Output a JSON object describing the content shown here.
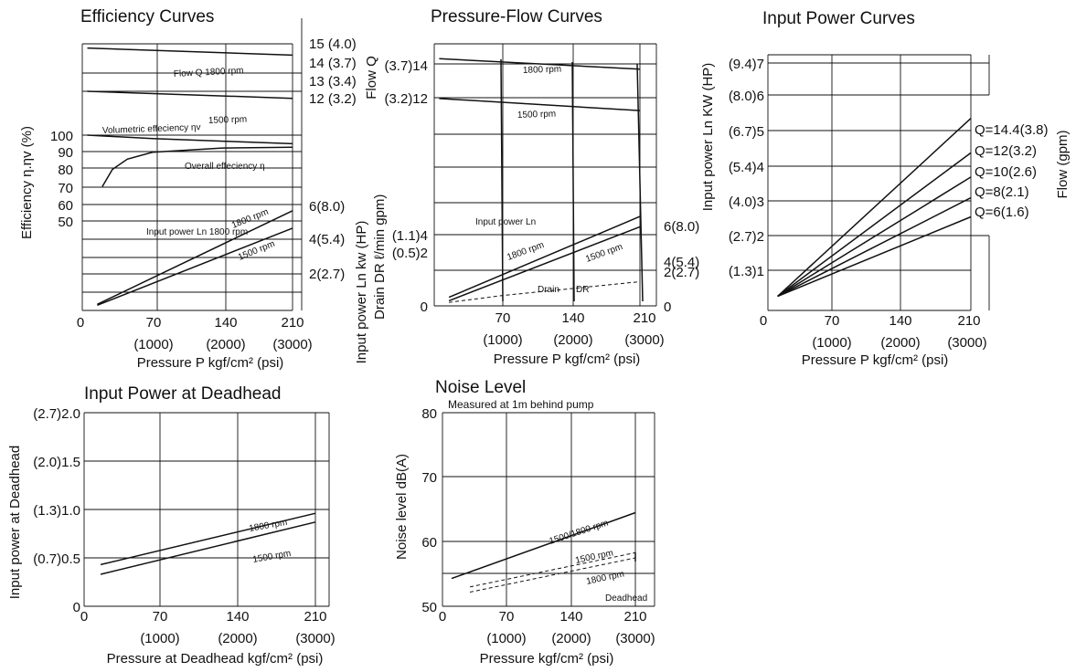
{
  "chart_data": [
    {
      "id": "eff",
      "type": "line",
      "title": "Efficiency Curves",
      "xlabel": "Pressure P kgf/cm² (psi)",
      "x_ticks": [
        {
          "value": 0,
          "label": "0",
          "sub": ""
        },
        {
          "value": 70,
          "label": "70",
          "sub": "(1000)"
        },
        {
          "value": 140,
          "label": "140",
          "sub": "(2000)"
        },
        {
          "value": 210,
          "label": "210",
          "sub": "(3000)"
        }
      ],
      "xlim": [
        0,
        220
      ],
      "ylabel_left": "Efficiency η.ηv (%)",
      "left_ticks": [
        "100",
        "90",
        "80",
        "70",
        "60",
        "50"
      ],
      "ylim_eff": [
        50,
        100
      ],
      "ylabel_right_flow": "Flow Q",
      "right_flow_ticks": [
        "15 (4.0)",
        "14 (3.7)",
        "13 (3.4)",
        "12 (3.2)"
      ],
      "ylim_flow": [
        12,
        15
      ],
      "ylabel_right_power": "Input power Ln kw (HP)",
      "right_power_ticks": [
        "6(8.0)",
        "4(5.4)",
        "2(2.7)"
      ],
      "ylim_power": [
        0,
        6
      ],
      "series": [
        {
          "name": "Flow Q 1800 rpm",
          "axis": "flow",
          "x": [
            5,
            210
          ],
          "y": [
            14.45,
            14.05
          ]
        },
        {
          "name": "1500 rpm",
          "axis": "flow",
          "x": [
            5,
            210
          ],
          "y": [
            12.0,
            11.6
          ]
        },
        {
          "name": "Volumetric effeciency ηv",
          "axis": "eff",
          "x": [
            5,
            70,
            140,
            210
          ],
          "y": [
            100,
            98,
            96.5,
            95
          ]
        },
        {
          "name": "Overall effeciency η",
          "axis": "eff",
          "x": [
            20,
            30,
            45,
            70,
            140,
            210
          ],
          "y": [
            70,
            80,
            86,
            90,
            92.5,
            93
          ]
        },
        {
          "name": "Input power Ln 1800 rpm",
          "axis": "power",
          "x": [
            15,
            210
          ],
          "y": [
            0.35,
            5.7
          ]
        },
        {
          "name": "1500 rpm",
          "axis": "power",
          "x": [
            15,
            210
          ],
          "y": [
            0.3,
            4.7
          ]
        }
      ]
    },
    {
      "id": "pf",
      "type": "line",
      "title": "Pressure-Flow Curves",
      "xlabel": "Pressure P kgf/cm² (psi)",
      "x_ticks": [
        {
          "value": 0,
          "label": "0",
          "sub": ""
        },
        {
          "value": 70,
          "label": "70",
          "sub": "(1000)"
        },
        {
          "value": 140,
          "label": "140",
          "sub": "(2000)"
        },
        {
          "value": 210,
          "label": "210",
          "sub": "(3000)"
        }
      ],
      "xlim": [
        0,
        220
      ],
      "ylabel_left_flow": "Flow Q",
      "left_flow_ticks": [
        "(3.7)14",
        "(3.2)12"
      ],
      "ylabel_left_drain": "Drain DR ℓ/min gpm)",
      "left_drain_ticks": [
        "(1.1)4",
        "(0.5)2",
        "0"
      ],
      "ylim_left": [
        0,
        14
      ],
      "ylabel_right_power": "Input power Ln kw (HP)",
      "right_power_ticks": [
        "6(8.0)",
        "4(5.4)",
        "2(2.7)",
        "0"
      ],
      "ylim_power": [
        0,
        6
      ],
      "series": [
        {
          "name": "1800 rpm",
          "axis": "left",
          "x": [
            5,
            210
          ],
          "y": [
            14.3,
            13.7
          ]
        },
        {
          "name": "1500 rpm",
          "axis": "left",
          "x": [
            5,
            210
          ],
          "y": [
            12.0,
            11.3
          ]
        },
        {
          "name": "Input power Ln 1800 rpm",
          "axis": "power",
          "x": [
            15,
            210
          ],
          "y": [
            0.5,
            5.2
          ]
        },
        {
          "name": "1500 rpm",
          "axis": "power",
          "x": [
            15,
            210
          ],
          "y": [
            0.3,
            4.6
          ]
        },
        {
          "name": "Drain DR",
          "axis": "left",
          "x": [
            15,
            70,
            140,
            210
          ],
          "y": [
            0.2,
            0.6,
            1.0,
            1.4
          ]
        }
      ]
    },
    {
      "id": "ip",
      "type": "line",
      "title": "Input Power Curves",
      "xlabel": "Pressure P kgf/cm² (psi)",
      "x_ticks": [
        {
          "value": 0,
          "label": "0",
          "sub": ""
        },
        {
          "value": 70,
          "label": "70",
          "sub": "(1000)"
        },
        {
          "value": 140,
          "label": "140",
          "sub": "(2000)"
        },
        {
          "value": 210,
          "label": "210",
          "sub": "(3000)"
        }
      ],
      "xlim": [
        0,
        220
      ],
      "ylabel": "Input power Ln KW (HP)",
      "y_ticks": [
        "(9.4)7",
        "(8.0)6",
        "(6.7)5",
        "(5.4)4",
        "(4.0)3",
        "(2.7)2",
        "(1.3)1"
      ],
      "ylim": [
        0,
        7
      ],
      "right_label": "Flow (gpm)",
      "series": [
        {
          "name": "Q=14.4(3.8)",
          "x": [
            10,
            210
          ],
          "y": [
            0.25,
            5.4
          ]
        },
        {
          "name": "Q=12(3.2)",
          "x": [
            10,
            210
          ],
          "y": [
            0.25,
            4.4
          ]
        },
        {
          "name": "Q=10(2.6)",
          "x": [
            10,
            210
          ],
          "y": [
            0.25,
            3.7
          ]
        },
        {
          "name": "Q=8(2.1)",
          "x": [
            10,
            210
          ],
          "y": [
            0.25,
            3.1
          ]
        },
        {
          "name": "Q=6(1.6)",
          "x": [
            10,
            210
          ],
          "y": [
            0.25,
            2.55
          ]
        }
      ]
    },
    {
      "id": "dh",
      "type": "line",
      "title": "Input Power at Deadhead",
      "xlabel": "Pressure at Deadhead kgf/cm² (psi)",
      "x_ticks": [
        {
          "value": 0,
          "label": "0",
          "sub": ""
        },
        {
          "value": 70,
          "label": "70",
          "sub": "(1000)"
        },
        {
          "value": 140,
          "label": "140",
          "sub": "(2000)"
        },
        {
          "value": 210,
          "label": "210",
          "sub": "(3000)"
        }
      ],
      "xlim": [
        0,
        220
      ],
      "ylabel": "Input power at Deadhead",
      "y_ticks": [
        "(2.7)2.0",
        "(2.0)1.5",
        "(1.3)1.0",
        "(0.7)0.5",
        "0"
      ],
      "ylim": [
        0,
        2
      ],
      "series": [
        {
          "name": "1800 rpm",
          "x": [
            15,
            210
          ],
          "y": [
            0.43,
            0.96
          ]
        },
        {
          "name": "1500 rpm",
          "x": [
            15,
            210
          ],
          "y": [
            0.33,
            0.87
          ]
        }
      ]
    },
    {
      "id": "nl",
      "type": "line",
      "title": "Noise Level",
      "subtitle": "Measured at 1m behind pump",
      "xlabel": "Pressure kgf/cm² (psi)",
      "x_ticks": [
        {
          "value": 0,
          "label": "0",
          "sub": ""
        },
        {
          "value": 70,
          "label": "70",
          "sub": "(1000)"
        },
        {
          "value": 140,
          "label": "140",
          "sub": "(2000)"
        },
        {
          "value": 210,
          "label": "210",
          "sub": "(3000)"
        }
      ],
      "xlim": [
        0,
        220
      ],
      "ylabel": "Noise level dB(A)",
      "y_ticks": [
        "80",
        "70",
        "60",
        "50"
      ],
      "ylim": [
        50,
        80
      ],
      "annotation": "Deadhead",
      "series": [
        {
          "name": "1500/1800 rpm",
          "x": [
            10,
            210
          ],
          "y": [
            54.3,
            64.5
          ]
        },
        {
          "name": "1500 rpm",
          "x": [
            30,
            210
          ],
          "y": [
            53,
            58.3
          ]
        },
        {
          "name": "1800 rpm",
          "x": [
            30,
            210
          ],
          "y": [
            52.2,
            57.5
          ]
        }
      ]
    }
  ]
}
